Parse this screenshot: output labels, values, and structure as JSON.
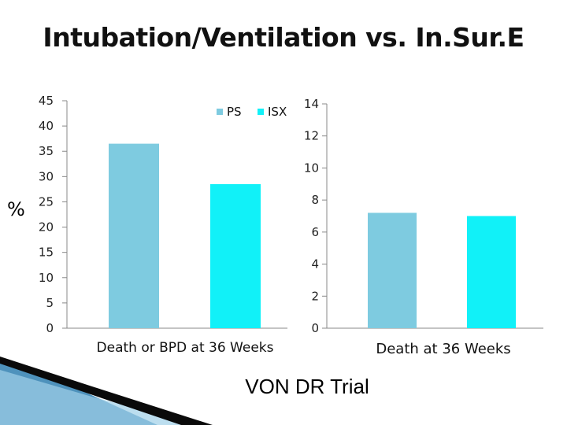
{
  "slide": {
    "title": "Intubation/Ventilation vs. In.Sur.E",
    "y_unit_label": "%",
    "footer": "VON DR Trial"
  },
  "colors": {
    "PS": "#7ecbe0",
    "ISX": "#11f1f8",
    "axis": "#888888",
    "decor_dark": "#0a0a0a",
    "decor_blue": "#2f7fb0"
  },
  "chart_data": [
    {
      "type": "bar",
      "title": "",
      "xlabel": "",
      "ylabel": "%",
      "categories": [
        "Death or BPD at 36 Weeks"
      ],
      "series": [
        {
          "name": "PS",
          "values": [
            36.5
          ]
        },
        {
          "name": "ISX",
          "values": [
            28.5
          ]
        }
      ],
      "yticks": [
        "45",
        "40",
        "35",
        "30",
        "25",
        "20",
        "15",
        "10",
        "5",
        "0"
      ],
      "ylim": [
        0,
        45
      ],
      "grid": false,
      "legend": "top-right",
      "legend_labels": [
        "PS",
        "ISX"
      ]
    },
    {
      "type": "bar",
      "title": "",
      "xlabel": "",
      "ylabel": "",
      "categories": [
        "Death at 36 Weeks"
      ],
      "series": [
        {
          "name": "PS",
          "values": [
            7.2
          ]
        },
        {
          "name": "ISX",
          "values": [
            7.0
          ]
        }
      ],
      "yticks": [
        "14",
        "12",
        "10",
        "8",
        "6",
        "4",
        "2",
        "0"
      ],
      "ylim": [
        0,
        14
      ],
      "grid": false,
      "legend": "none"
    }
  ]
}
